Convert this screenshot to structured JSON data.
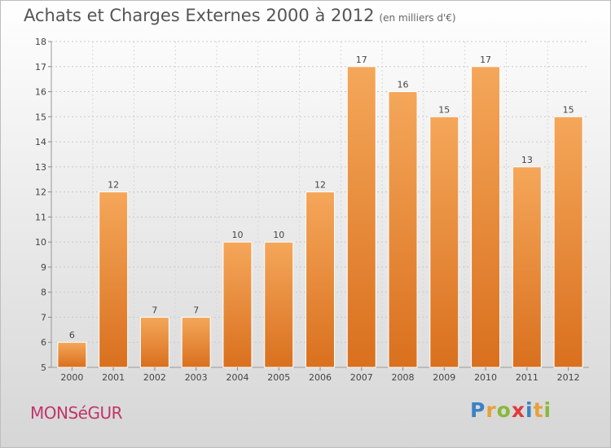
{
  "header": {
    "title": "Achats et Charges Externes 2000 à 2012",
    "subtitle": "(en milliers d'€)"
  },
  "footer": {
    "commune": "MONSéGUR",
    "brand": "Proxiti",
    "brand_colors": [
      "#3b82c4",
      "#e8a13a",
      "#8ab83a",
      "#e03c3c",
      "#3b82c4",
      "#e8a13a",
      "#8ab83a"
    ]
  },
  "colors": {
    "bar_top": "#f5a75a",
    "bar_bottom": "#d9701e",
    "grid": "#c8c8c8"
  },
  "chart_data": {
    "type": "bar",
    "title": "Achats et Charges Externes 2000 à 2012",
    "subtitle": "(en milliers d'€)",
    "categories": [
      "2000",
      "2001",
      "2002",
      "2003",
      "2004",
      "2005",
      "2006",
      "2007",
      "2008",
      "2009",
      "2010",
      "2011",
      "2012"
    ],
    "values": [
      6,
      12,
      7,
      7,
      10,
      10,
      12,
      17,
      16,
      15,
      17,
      13,
      15
    ],
    "ylim": [
      5,
      18
    ],
    "yticks": [
      5,
      6,
      7,
      8,
      9,
      10,
      11,
      12,
      13,
      14,
      15,
      16,
      17,
      18
    ],
    "grid": true,
    "data_labels": true
  }
}
